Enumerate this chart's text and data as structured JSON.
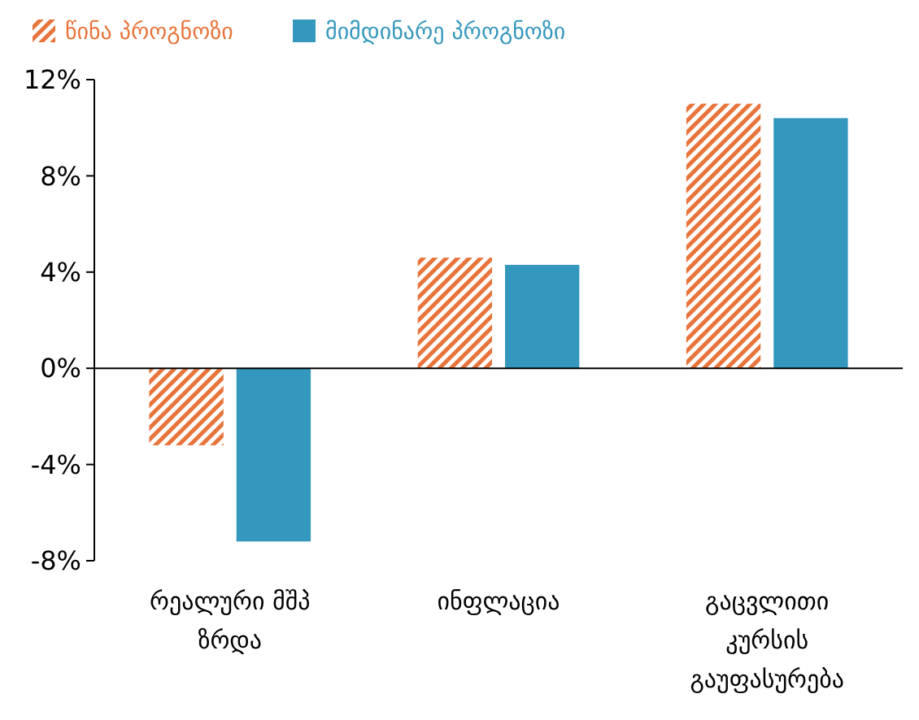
{
  "chart_data": {
    "type": "bar",
    "categories": [
      "რეალური მშპ ზრდა",
      "ინფლაცია",
      "გაცვლითი კურსის გაუფასურება"
    ],
    "series": [
      {
        "name": "წინა პროგნოზი",
        "color": "#e8743b",
        "values": [
          -3.2,
          4.6,
          11.0
        ]
      },
      {
        "name": "მიმდინარე პროგნოზი",
        "color": "#3497bd",
        "values": [
          -7.2,
          4.3,
          10.4
        ]
      }
    ],
    "ylim": [
      -8,
      12
    ],
    "yticks": [
      {
        "value": -8,
        "label": "-8%"
      },
      {
        "value": -4,
        "label": "-4%"
      },
      {
        "value": 0,
        "label": "0%"
      },
      {
        "value": 4,
        "label": "4%"
      },
      {
        "value": 8,
        "label": "8%"
      },
      {
        "value": 12,
        "label": "12%"
      }
    ],
    "legend": "top left"
  }
}
